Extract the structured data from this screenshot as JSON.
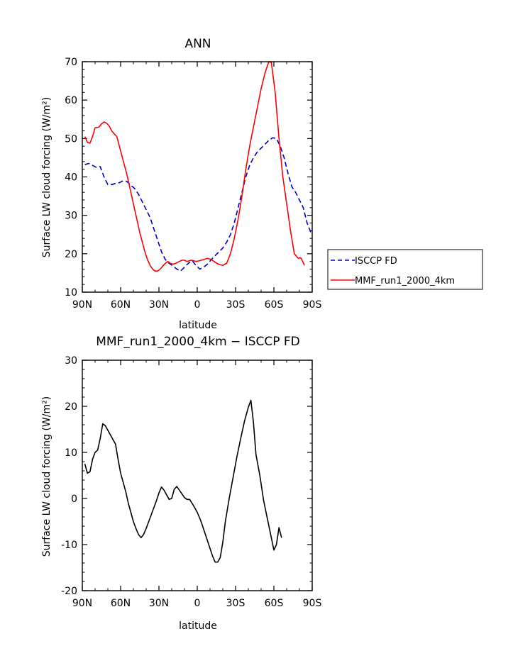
{
  "chart_data": [
    {
      "type": "line",
      "title": "ANN",
      "xlabel": "latitude",
      "ylabel": "Surface LW cloud forcing (W/m²)",
      "ylim": [
        10,
        70
      ],
      "yticks": [
        "10",
        "20",
        "30",
        "40",
        "50",
        "60",
        "70"
      ],
      "xlim": [
        90,
        -90
      ],
      "xticks": [
        "90N",
        "60N",
        "30N",
        "0",
        "30S",
        "60S",
        "90S"
      ],
      "legend_position": "right-bottom, outside plot",
      "series": [
        {
          "name": "ISCCP FD",
          "color": "#0000cc",
          "dash": "dashed",
          "points": [
            [
              88,
              43.2
            ],
            [
              85,
              43.5
            ],
            [
              82,
              43
            ],
            [
              79,
              42.5
            ],
            [
              76,
              42.7
            ],
            [
              73,
              40
            ],
            [
              70,
              38
            ],
            [
              67,
              38
            ],
            [
              64,
              38.3
            ],
            [
              61,
              38.5
            ],
            [
              58,
              39
            ],
            [
              55,
              38.8
            ],
            [
              52,
              37.8
            ],
            [
              49,
              37
            ],
            [
              46,
              35.5
            ],
            [
              43,
              33.5
            ],
            [
              40,
              31.5
            ],
            [
              37,
              29.5
            ],
            [
              34,
              26.5
            ],
            [
              31,
              23.5
            ],
            [
              28,
              20.5
            ],
            [
              25,
              18.5
            ],
            [
              22,
              17.5
            ],
            [
              19,
              16.8
            ],
            [
              16,
              16
            ],
            [
              13,
              15.5
            ],
            [
              10,
              16.5
            ],
            [
              7,
              17.5
            ],
            [
              4,
              18.2
            ],
            [
              1,
              17
            ],
            [
              -2,
              16
            ],
            [
              -5,
              16.5
            ],
            [
              -8,
              17.3
            ],
            [
              -11,
              18.5
            ],
            [
              -14,
              19.5
            ],
            [
              -17,
              20.5
            ],
            [
              -20,
              21.5
            ],
            [
              -23,
              23
            ],
            [
              -26,
              25
            ],
            [
              -29,
              28
            ],
            [
              -32,
              32
            ],
            [
              -35,
              36
            ],
            [
              -38,
              40
            ],
            [
              -41,
              43
            ],
            [
              -44,
              45
            ],
            [
              -47,
              46.5
            ],
            [
              -50,
              47.5
            ],
            [
              -53,
              48.5
            ],
            [
              -56,
              49.5
            ],
            [
              -59,
              50.2
            ],
            [
              -62,
              50
            ],
            [
              -65,
              48
            ],
            [
              -68,
              45
            ],
            [
              -71,
              41
            ],
            [
              -74,
              37.5
            ],
            [
              -77,
              36
            ],
            [
              -80,
              34
            ],
            [
              -83,
              32
            ],
            [
              -86,
              28
            ],
            [
              -89,
              25.5
            ]
          ]
        },
        {
          "name": "MMF_run1_2000_4km",
          "color": "#ff0000",
          "dash": "solid",
          "points": [
            [
              88,
              50.5
            ],
            [
              86,
              49
            ],
            [
              84,
              48.8
            ],
            [
              82,
              50.5
            ],
            [
              80,
              52.8
            ],
            [
              77,
              53
            ],
            [
              75,
              53.8
            ],
            [
              73,
              54.3
            ],
            [
              71,
              54
            ],
            [
              69,
              53.3
            ],
            [
              67,
              52
            ],
            [
              65,
              51.2
            ],
            [
              63,
              50.5
            ],
            [
              61,
              48
            ],
            [
              59,
              45.5
            ],
            [
              57,
              43
            ],
            [
              55,
              40.5
            ],
            [
              53,
              37.5
            ],
            [
              51,
              34.5
            ],
            [
              49,
              31.5
            ],
            [
              47,
              28.5
            ],
            [
              45,
              25.5
            ],
            [
              43,
              23
            ],
            [
              41,
              20.5
            ],
            [
              39,
              18.5
            ],
            [
              37,
              17
            ],
            [
              35,
              16
            ],
            [
              33,
              15.5
            ],
            [
              31,
              15.5
            ],
            [
              29,
              16
            ],
            [
              27,
              16.8
            ],
            [
              25,
              17.5
            ],
            [
              23,
              18
            ],
            [
              21,
              17.5
            ],
            [
              19,
              17.3
            ],
            [
              17,
              17.5
            ],
            [
              14,
              18
            ],
            [
              12,
              18.3
            ],
            [
              10,
              18.3
            ],
            [
              8,
              18
            ],
            [
              5,
              18.3
            ],
            [
              3,
              18.2
            ],
            [
              1,
              18
            ],
            [
              -2,
              18.2
            ],
            [
              -5,
              18.5
            ],
            [
              -8,
              18.8
            ],
            [
              -11,
              18.5
            ],
            [
              -14,
              17.8
            ],
            [
              -17,
              17.2
            ],
            [
              -20,
              17
            ],
            [
              -23,
              17.5
            ],
            [
              -26,
              20
            ],
            [
              -29,
              24
            ],
            [
              -32,
              29
            ],
            [
              -35,
              35
            ],
            [
              -38,
              42
            ],
            [
              -41,
              48
            ],
            [
              -44,
              53
            ],
            [
              -47,
              58
            ],
            [
              -50,
              63
            ],
            [
              -53,
              67
            ],
            [
              -56,
              70
            ],
            [
              -58,
              69.8
            ],
            [
              -61,
              62
            ],
            [
              -64,
              50
            ],
            [
              -67,
              40
            ],
            [
              -70,
              33
            ],
            [
              -73,
              26
            ],
            [
              -76,
              20
            ],
            [
              -79,
              18.8
            ],
            [
              -81,
              19
            ],
            [
              -84,
              17
            ]
          ]
        }
      ]
    },
    {
      "type": "line",
      "title": "MMF_run1_2000_4km − ISCCP FD",
      "xlabel": "latitude",
      "ylabel": "Surface LW cloud forcing (W/m²)",
      "ylim": [
        -20,
        30
      ],
      "yticks": [
        "-20",
        "-10",
        "0",
        "10",
        "20",
        "30"
      ],
      "xlim": [
        90,
        -90
      ],
      "xticks": [
        "90N",
        "60N",
        "30N",
        "0",
        "30S",
        "60S",
        "90S"
      ],
      "series": [
        {
          "color": "#000000",
          "dash": "solid",
          "points": [
            [
              88,
              7.5
            ],
            [
              86,
              5.5
            ],
            [
              84,
              5.8
            ],
            [
              82,
              8.5
            ],
            [
              80,
              10
            ],
            [
              78,
              10.5
            ],
            [
              76,
              13
            ],
            [
              74,
              16.2
            ],
            [
              72,
              15.8
            ],
            [
              70,
              14.8
            ],
            [
              68,
              13.8
            ],
            [
              66,
              12.8
            ],
            [
              64,
              11.8
            ],
            [
              62,
              8.5
            ],
            [
              60,
              5.5
            ],
            [
              58,
              3.5
            ],
            [
              56,
              1.5
            ],
            [
              54,
              -1
            ],
            [
              52,
              -3
            ],
            [
              50,
              -5
            ],
            [
              48,
              -6.5
            ],
            [
              46,
              -7.8
            ],
            [
              44,
              -8.5
            ],
            [
              42,
              -7.8
            ],
            [
              40,
              -6.5
            ],
            [
              38,
              -5
            ],
            [
              36,
              -3.5
            ],
            [
              34,
              -2
            ],
            [
              32,
              -0.5
            ],
            [
              30,
              1.2
            ],
            [
              28,
              2.5
            ],
            [
              26,
              1.8
            ],
            [
              24,
              0.8
            ],
            [
              22,
              -0.2
            ],
            [
              20,
              0
            ],
            [
              18,
              2
            ],
            [
              16,
              2.6
            ],
            [
              14,
              1.8
            ],
            [
              12,
              1
            ],
            [
              10,
              0.2
            ],
            [
              8,
              -0.2
            ],
            [
              6,
              -0.2
            ],
            [
              3,
              -1.5
            ],
            [
              0,
              -3
            ],
            [
              -3,
              -5
            ],
            [
              -6,
              -7.5
            ],
            [
              -9,
              -10
            ],
            [
              -12,
              -12.5
            ],
            [
              -14,
              -13.8
            ],
            [
              -16,
              -13.8
            ],
            [
              -18,
              -12.8
            ],
            [
              -20,
              -9.5
            ],
            [
              -22,
              -5
            ],
            [
              -25,
              0
            ],
            [
              -28,
              4.5
            ],
            [
              -31,
              9
            ],
            [
              -34,
              13
            ],
            [
              -37,
              16.8
            ],
            [
              -40,
              19.8
            ],
            [
              -42,
              21.3
            ],
            [
              -44,
              16.5
            ],
            [
              -46,
              9.5
            ],
            [
              -49,
              5
            ],
            [
              -52,
              -0.5
            ],
            [
              -55,
              -4.5
            ],
            [
              -58,
              -8.5
            ],
            [
              -60,
              -11.2
            ],
            [
              -62,
              -10
            ],
            [
              -64,
              -6.3
            ],
            [
              -66,
              -8.5
            ]
          ]
        }
      ]
    }
  ]
}
